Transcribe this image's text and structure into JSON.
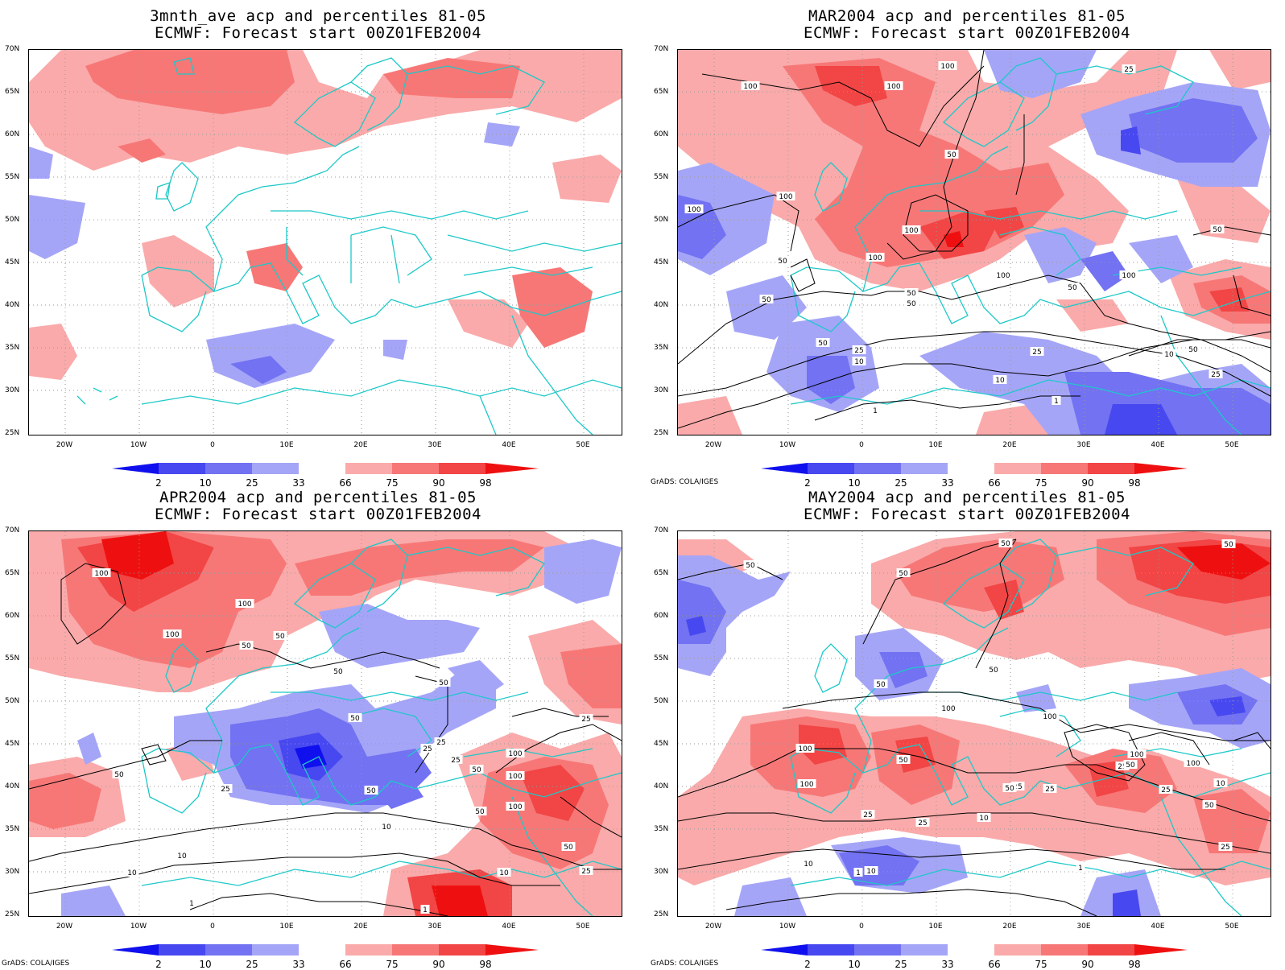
{
  "grads_credit": "GrADS: COLA/IGES",
  "colorbar": {
    "labels": [
      "2",
      "10",
      "25",
      "33",
      "66",
      "75",
      "90",
      "98"
    ],
    "colors": [
      "#1010ee",
      "#4848f0",
      "#7272f2",
      "#a5a5f8",
      "#ffffff",
      "#faaaaa",
      "#f77777",
      "#f24545",
      "#ee1010"
    ]
  },
  "axes": {
    "lat_labels": [
      "70N",
      "65N",
      "60N",
      "55N",
      "50N",
      "45N",
      "40N",
      "35N",
      "30N",
      "25N"
    ],
    "lon_labels": [
      "20W",
      "10W",
      "0",
      "10E",
      "20E",
      "30E",
      "40E",
      "50E"
    ]
  },
  "panels": [
    {
      "title_line1": "3mnth_ave acp and percentiles 81-05",
      "title_line2": "ECMWF: Forecast start 00Z01FEB2004",
      "show_credit": false,
      "contour_labels": []
    },
    {
      "title_line1": "MAR2004 acp and percentiles 81-05",
      "title_line2": "ECMWF: Forecast start 00Z01FEB2004",
      "show_credit": true,
      "contour_labels": [
        "100",
        "100",
        "100",
        "50",
        "100",
        "100",
        "50",
        "100",
        "100",
        "100",
        "50",
        "50",
        "50",
        "50",
        "25",
        "10",
        "25",
        "10",
        "1",
        "1",
        "10",
        "50",
        "25",
        "50",
        "25",
        "100",
        "50"
      ]
    },
    {
      "title_line1": "APR2004 acp and percentiles 81-05",
      "title_line2": "ECMWF: Forecast start 00Z01FEB2004",
      "show_credit": true,
      "contour_labels": [
        "100",
        "100",
        "100",
        "50",
        "50",
        "50",
        "50",
        "50",
        "25",
        "25",
        "100",
        "50",
        "25",
        "50",
        "10",
        "50",
        "25",
        "25",
        "10",
        "50",
        "100",
        "100",
        "10",
        "25",
        "50",
        "10",
        "1",
        "1"
      ]
    },
    {
      "title_line1": "MAY2004 acp and percentiles 81-05",
      "title_line2": "ECMWF: Forecast start 00Z01FEB2004",
      "show_credit": true,
      "contour_labels": [
        "50",
        "50",
        "50",
        "50",
        "50",
        "50",
        "100",
        "100",
        "100",
        "50",
        "100",
        "50",
        "25",
        "25",
        "10",
        "25",
        "100",
        "25",
        "25",
        "100",
        "50",
        "25",
        "10",
        "10",
        "10",
        "50",
        "25",
        "1",
        "1"
      ]
    }
  ]
}
